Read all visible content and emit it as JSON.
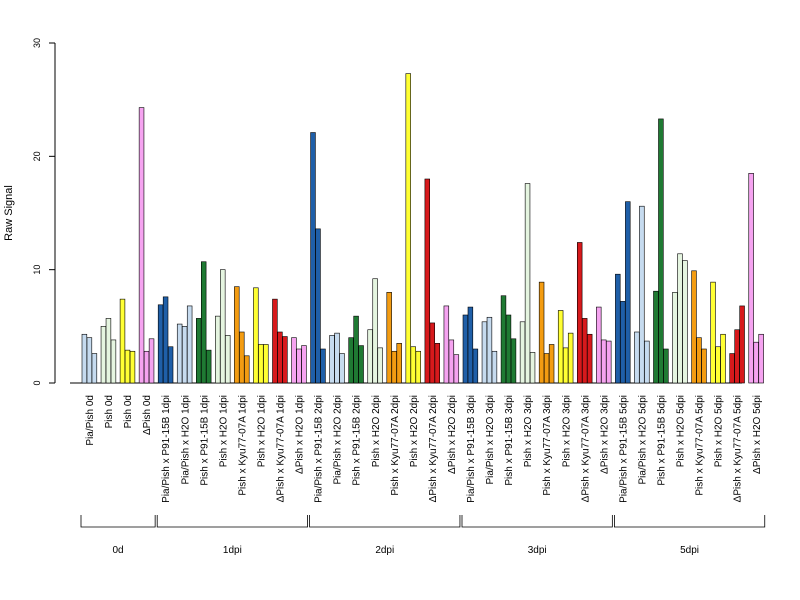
{
  "chart_data": {
    "type": "bar",
    "ylabel": "Raw Signal",
    "ylim": [
      0,
      30
    ],
    "yticks": [
      0,
      10,
      20,
      30
    ],
    "grid": false,
    "legend": "none",
    "bars_per_category": 3,
    "colors": {
      "light_blue": "#c6dbef",
      "dark_blue": "#1f5fa8",
      "light_green": "#e5f5e0",
      "dark_green": "#1f7a33",
      "orange": "#f39c12",
      "yellow": "#ffff33",
      "red": "#d7191c",
      "pink": "#f5a3f0"
    },
    "categories": [
      {
        "label": "Pia/Pish 0d",
        "color": "light_blue",
        "values": [
          4.3,
          4.0,
          2.6
        ]
      },
      {
        "label": "Pish 0d",
        "color": "light_green",
        "values": [
          5.0,
          5.7,
          3.8
        ]
      },
      {
        "label": "Pish 0d",
        "color": "yellow",
        "values": [
          7.4,
          2.9,
          2.8
        ]
      },
      {
        "label": "ΔPish 0d",
        "color": "pink",
        "values": [
          24.3,
          2.8,
          3.9
        ]
      },
      {
        "label": "Pia/Pish x P91-15B 1dpi",
        "color": "dark_blue",
        "values": [
          6.9,
          7.6,
          3.2
        ]
      },
      {
        "label": "Pia/Pish x H2O 1dpi",
        "color": "light_blue",
        "values": [
          5.2,
          5.0,
          6.8
        ]
      },
      {
        "label": "Pish x P91-15B 1dpi",
        "color": "dark_green",
        "values": [
          5.7,
          10.7,
          2.9
        ]
      },
      {
        "label": "Pish x H2O 1dpi",
        "color": "light_green",
        "values": [
          5.9,
          10.0,
          4.2
        ]
      },
      {
        "label": "Pish x Kyu77-07A 1dpi",
        "color": "orange",
        "values": [
          8.5,
          4.5,
          2.4
        ]
      },
      {
        "label": "Pish x H2O 1dpi",
        "color": "yellow",
        "values": [
          8.4,
          3.4,
          3.4
        ]
      },
      {
        "label": "ΔPish x Kyu77-07A 1dpi",
        "color": "red",
        "values": [
          7.4,
          4.5,
          4.1
        ]
      },
      {
        "label": "ΔPish x H2O 1dpi",
        "color": "pink",
        "values": [
          4.0,
          3.0,
          3.3
        ]
      },
      {
        "label": "Pia/Pish x P91-15B 2dpi",
        "color": "dark_blue",
        "values": [
          22.1,
          13.6,
          3.0
        ]
      },
      {
        "label": "Pia/Pish x H2O 2dpi",
        "color": "light_blue",
        "values": [
          4.2,
          4.4,
          2.6
        ]
      },
      {
        "label": "Pish x P91-15B 2dpi",
        "color": "dark_green",
        "values": [
          4.0,
          5.9,
          3.3
        ]
      },
      {
        "label": "Pish x H2O 2dpi",
        "color": "light_green",
        "values": [
          4.7,
          9.2,
          3.1
        ]
      },
      {
        "label": "Pish x Kyu77-07A 2dpi",
        "color": "orange",
        "values": [
          8.0,
          2.8,
          3.5
        ]
      },
      {
        "label": "Pish x H2O 2dpi",
        "color": "yellow",
        "values": [
          27.3,
          3.2,
          2.8
        ]
      },
      {
        "label": "ΔPish x Kyu77-07A 2dpi",
        "color": "red",
        "values": [
          18.0,
          5.3,
          3.5
        ]
      },
      {
        "label": "ΔPish x H2O 2dpi",
        "color": "pink",
        "values": [
          6.8,
          3.8,
          2.5
        ]
      },
      {
        "label": "Pia/Pish x P91-15B 3dpi",
        "color": "dark_blue",
        "values": [
          6.0,
          6.7,
          3.0
        ]
      },
      {
        "label": "Pia/Pish x H2O 3dpi",
        "color": "light_blue",
        "values": [
          5.4,
          5.8,
          2.8
        ]
      },
      {
        "label": "Pish x P91-15B 3dpi",
        "color": "dark_green",
        "values": [
          7.7,
          6.0,
          3.9
        ]
      },
      {
        "label": "Pish x H2O 3dpi",
        "color": "light_green",
        "values": [
          5.4,
          17.6,
          2.7
        ]
      },
      {
        "label": "Pish x Kyu77-07A 3dpi",
        "color": "orange",
        "values": [
          8.9,
          2.6,
          3.4
        ]
      },
      {
        "label": "Pish x H2O 3dpi",
        "color": "yellow",
        "values": [
          6.4,
          3.1,
          4.4
        ]
      },
      {
        "label": "ΔPish x Kyu77-07A 3dpi",
        "color": "red",
        "values": [
          12.4,
          5.7,
          4.3
        ]
      },
      {
        "label": "ΔPish x H2O 3dpi",
        "color": "pink",
        "values": [
          6.7,
          3.8,
          3.7
        ]
      },
      {
        "label": "Pia/Pish x P91-15B 5dpi",
        "color": "dark_blue",
        "values": [
          9.6,
          7.2,
          16.0
        ]
      },
      {
        "label": "Pia/Pish x H2O 5dpi",
        "color": "light_blue",
        "values": [
          4.5,
          15.6,
          3.7
        ]
      },
      {
        "label": "Pish x P91-15B 5dpi",
        "color": "dark_green",
        "values": [
          8.1,
          23.3,
          3.0
        ]
      },
      {
        "label": "Pish x H2O 5dpi",
        "color": "light_green",
        "values": [
          8.0,
          11.4,
          10.8
        ]
      },
      {
        "label": "Pish x Kyu77-07A 5dpi",
        "color": "orange",
        "values": [
          9.9,
          4.0,
          3.0
        ]
      },
      {
        "label": "Pish x H2O 5dpi",
        "color": "yellow",
        "values": [
          8.9,
          3.2,
          4.3
        ]
      },
      {
        "label": "ΔPish x Kyu77-07A 5dpi",
        "color": "red",
        "values": [
          2.6,
          4.7,
          6.8
        ]
      },
      {
        "label": "ΔPish x H2O 5dpi",
        "color": "pink",
        "values": [
          18.5,
          3.6,
          4.3
        ]
      }
    ],
    "groups": [
      {
        "label": "0d",
        "count": 4
      },
      {
        "label": "1dpi",
        "count": 8
      },
      {
        "label": "2dpi",
        "count": 8
      },
      {
        "label": "3dpi",
        "count": 8
      },
      {
        "label": "5dpi",
        "count": 8
      }
    ]
  }
}
